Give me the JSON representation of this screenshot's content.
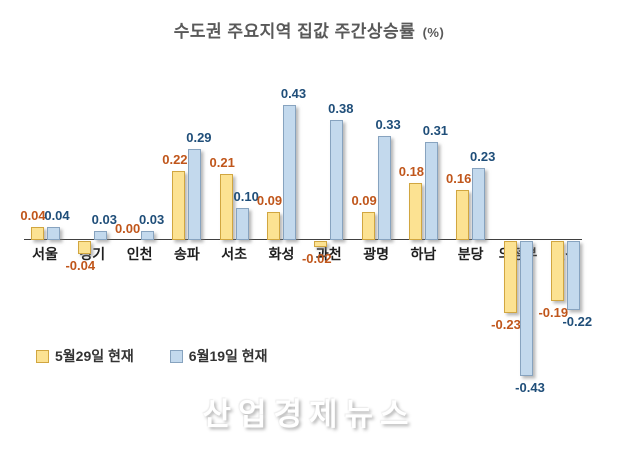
{
  "title": {
    "text": "수도권 주요지역 집값 주간상승률",
    "unit": "(%)"
  },
  "watermark": "산업경제뉴스",
  "colors": {
    "background": "#ffffff",
    "title_text": "#595959",
    "axis_line": "#404040",
    "category_label": "#1f1f1f",
    "may_bar_fill": "#FCE292",
    "may_bar_border": "#D1A640",
    "may_label": "#C0561B",
    "june_bar_fill": "#C3D9ED",
    "june_bar_border": "#87A3BF",
    "june_label": "#1F4E79"
  },
  "chart_data": {
    "type": "bar",
    "title": "수도권 주요지역 집값 주간상승률 (%)",
    "categories": [
      "서울",
      "경기",
      "인천",
      "송파",
      "서초",
      "화성",
      "과천",
      "광명",
      "하남",
      "분당",
      "의정부",
      "일산"
    ],
    "series": [
      {
        "name": "5월29일 현재",
        "values": [
          0.04,
          -0.04,
          0.0,
          0.22,
          0.21,
          0.09,
          -0.02,
          0.09,
          0.18,
          0.16,
          -0.23,
          -0.19
        ],
        "fill": "#FCE292",
        "border": "#D1A640",
        "label_color": "#C0561B"
      },
      {
        "name": "6월19일 현재",
        "values": [
          0.04,
          0.03,
          0.03,
          0.29,
          0.1,
          0.43,
          0.38,
          0.33,
          0.31,
          0.23,
          -0.43,
          -0.22
        ],
        "fill": "#C3D9ED",
        "border": "#87A3BF",
        "label_color": "#1F4E79"
      }
    ],
    "ylim": [
      -0.5,
      0.5
    ],
    "grid": false,
    "legend_position": "bottom-left",
    "value_labels": true
  }
}
